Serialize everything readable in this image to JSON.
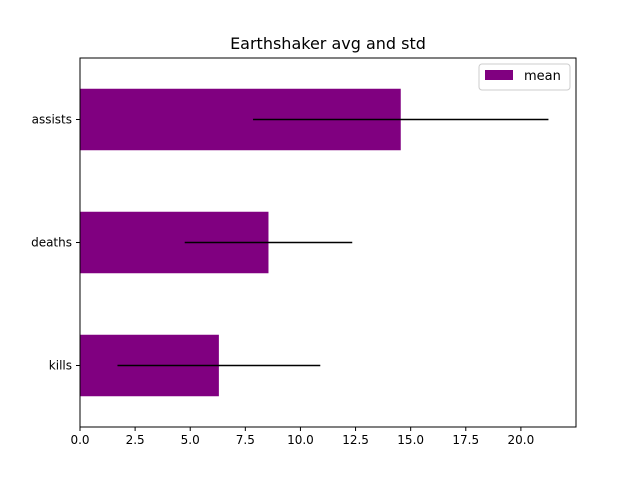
{
  "chart_data": {
    "type": "bar",
    "orientation": "horizontal",
    "title": "Earthshaker avg and std",
    "xlabel": "",
    "ylabel": "",
    "categories": [
      "kills",
      "deaths",
      "assists"
    ],
    "series": [
      {
        "name": "mean",
        "values": [
          6.3,
          8.55,
          14.55
        ],
        "error": [
          4.6,
          3.8,
          6.7
        ],
        "color": "#800080"
      }
    ],
    "xlim": [
      0,
      22.5
    ],
    "xticks": [
      0,
      2.5,
      5,
      7.5,
      10,
      12.5,
      15,
      17.5,
      20
    ],
    "xtick_labels": [
      "0.0",
      "2.5",
      "5.0",
      "7.5",
      "10.0",
      "12.5",
      "15.0",
      "17.5",
      "20.0"
    ],
    "grid": false,
    "legend_position": "top-right",
    "errorbar_color": "#000000"
  }
}
